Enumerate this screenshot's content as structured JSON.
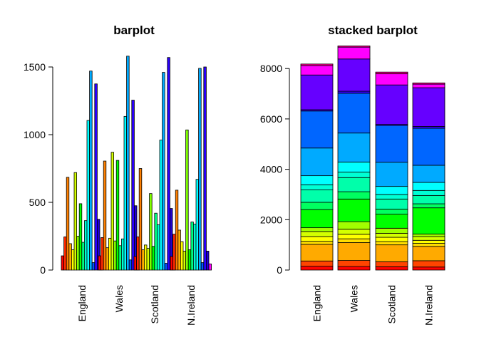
{
  "chart_data": [
    {
      "type": "bar",
      "title": "barplot",
      "xlabel": "",
      "ylabel": "",
      "ylim": [
        0,
        1600
      ],
      "yticks": [
        0,
        500,
        1000,
        1500
      ],
      "grid": false,
      "categories": [
        "England",
        "Wales",
        "Scotland",
        "N.Ireland"
      ],
      "series_colors": [
        "#FF0000",
        "#FF2A00",
        "#FF8000",
        "#FFAA00",
        "#FFFF00",
        "#D4FF00",
        "#80FF00",
        "#00FF00",
        "#00FF80",
        "#00FFD4",
        "#00FFFF",
        "#00AAFF",
        "#0055FF",
        "#2B00FF",
        "#2000D4",
        "#FF00FF",
        "#D400AA",
        "#FF0080"
      ],
      "values": [
        [
          105,
          245,
          685,
          195,
          150,
          720,
          250,
          490,
          205,
          365,
          1105,
          1470,
          55,
          1375,
          375,
          55
        ],
        [
          105,
          240,
          805,
          165,
          235,
          870,
          215,
          810,
          180,
          230,
          1135,
          1580,
          75,
          1255,
          475,
          75
        ],
        [
          100,
          245,
          750,
          150,
          185,
          160,
          565,
          175,
          420,
          335,
          960,
          1460,
          50,
          1570,
          455,
          65
        ],
        [
          100,
          265,
          590,
          295,
          210,
          140,
          1035,
          150,
          355,
          340,
          670,
          1490,
          55,
          1500,
          140,
          45
        ]
      ]
    },
    {
      "type": "bar",
      "stacked": true,
      "title": "stacked barplot",
      "xlabel": "",
      "ylabel": "",
      "ylim": [
        0,
        8600
      ],
      "yticks": [
        0,
        2000,
        4000,
        6000,
        8000
      ],
      "grid": false,
      "categories": [
        "England",
        "Wales",
        "Scotland",
        "N.Ireland"
      ],
      "series_colors": [
        "#FF0000",
        "#FF4400",
        "#FFAA00",
        "#FFDD00",
        "#FFFF00",
        "#D4FF00",
        "#A0FF00",
        "#00FF00",
        "#00FF60",
        "#00FFAA",
        "#00FFD4",
        "#00FFFF",
        "#00AAFF",
        "#0066FF",
        "#3300FF",
        "#6600FF",
        "#FF00FF",
        "#FF0090"
      ],
      "values": [
        [
          150,
          210,
          660,
          120,
          190,
          200,
          150,
          720,
          290,
          490,
          205,
          360,
          1100,
          1470,
          50,
          1380,
          375,
          60
        ],
        [
          140,
          240,
          710,
          150,
          180,
          200,
          300,
          900,
          290,
          560,
          220,
          400,
          1150,
          1580,
          80,
          1280,
          470,
          50
        ],
        [
          130,
          200,
          670,
          130,
          170,
          160,
          200,
          560,
          200,
          400,
          180,
          320,
          960,
          1460,
          40,
          1570,
          440,
          70
        ],
        [
          120,
          250,
          570,
          120,
          120,
          150,
          100,
          1040,
          160,
          330,
          200,
          320,
          680,
          1470,
          70,
          1540,
          140,
          50
        ]
      ]
    }
  ]
}
